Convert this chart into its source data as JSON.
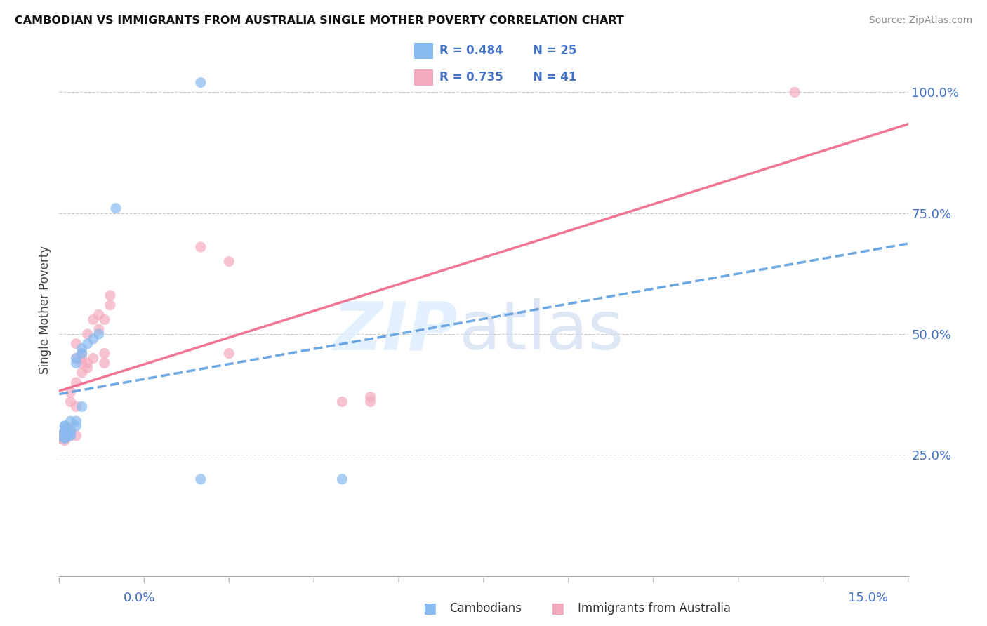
{
  "title": "CAMBODIAN VS IMMIGRANTS FROM AUSTRALIA SINGLE MOTHER POVERTY CORRELATION CHART",
  "source": "Source: ZipAtlas.com",
  "ylabel": "Single Mother Poverty",
  "R1": 0.484,
  "N1": 25,
  "R2": 0.735,
  "N2": 41,
  "color1": "#88BBF0",
  "color2": "#F4AABD",
  "line_color1": "#5599DD",
  "line_color2": "#EE6688",
  "xmin": 0.0,
  "xmax": 0.15,
  "ymin": 0.0,
  "ymax": 1.1,
  "legend_label1": "Cambodians",
  "legend_label2": "Immigrants from Australia",
  "cam_x": [
    0.0,
    0.001,
    0.001,
    0.001,
    0.001,
    0.001,
    0.001,
    0.002,
    0.002,
    0.002,
    0.002,
    0.003,
    0.003,
    0.003,
    0.003,
    0.004,
    0.004,
    0.004,
    0.005,
    0.006,
    0.007,
    0.01,
    0.025,
    0.05,
    0.025
  ],
  "cam_y": [
    0.29,
    0.285,
    0.285,
    0.3,
    0.305,
    0.31,
    0.31,
    0.29,
    0.295,
    0.3,
    0.32,
    0.31,
    0.32,
    0.44,
    0.45,
    0.35,
    0.46,
    0.47,
    0.48,
    0.49,
    0.5,
    0.76,
    0.2,
    0.2,
    1.02
  ],
  "aus_x": [
    0.0,
    0.0,
    0.0,
    0.001,
    0.001,
    0.001,
    0.001,
    0.001,
    0.002,
    0.002,
    0.002,
    0.002,
    0.002,
    0.003,
    0.003,
    0.003,
    0.003,
    0.003,
    0.004,
    0.004,
    0.004,
    0.004,
    0.005,
    0.005,
    0.005,
    0.006,
    0.006,
    0.007,
    0.007,
    0.008,
    0.008,
    0.008,
    0.009,
    0.009,
    0.05,
    0.055,
    0.055,
    0.03,
    0.03,
    0.025,
    0.13
  ],
  "aus_y": [
    0.285,
    0.285,
    0.29,
    0.28,
    0.285,
    0.29,
    0.295,
    0.3,
    0.29,
    0.295,
    0.305,
    0.36,
    0.38,
    0.29,
    0.35,
    0.4,
    0.45,
    0.48,
    0.42,
    0.44,
    0.45,
    0.46,
    0.43,
    0.44,
    0.5,
    0.45,
    0.53,
    0.51,
    0.54,
    0.53,
    0.44,
    0.46,
    0.56,
    0.58,
    0.36,
    0.36,
    0.37,
    0.65,
    0.46,
    0.68,
    1.0
  ]
}
